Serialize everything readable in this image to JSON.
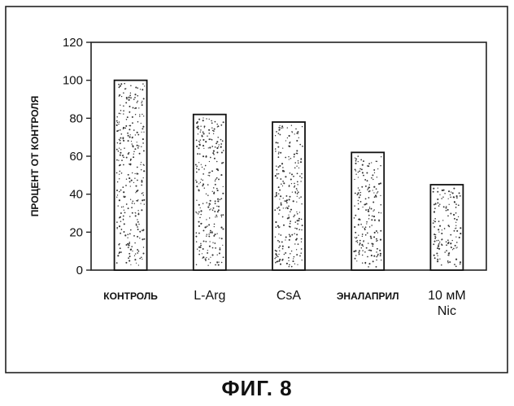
{
  "figure": {
    "caption": "ФИГ. 8"
  },
  "chart_data": {
    "type": "bar",
    "title": "",
    "xlabel": "",
    "ylabel": "ПРОЦЕНТ ОТ КОНТРОЛЯ",
    "categories": [
      "КОНТРОЛЬ",
      "L-Arg",
      "CsA",
      "ЭНАЛАПРИЛ",
      "10 мМ\nNic"
    ],
    "values": [
      100,
      82,
      78,
      62,
      45
    ],
    "ylim": [
      0,
      120
    ],
    "yticks": [
      0,
      20,
      40,
      60,
      80,
      100,
      120
    ],
    "grid": false,
    "legend": "none",
    "bar_fill": "#ffffff",
    "bar_stroke": "#111111",
    "stipple_color": "#333333"
  }
}
